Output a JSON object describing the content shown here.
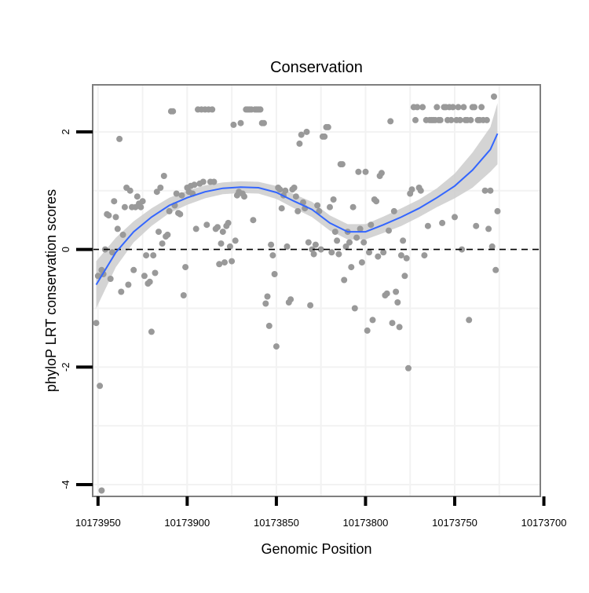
{
  "chart_data": {
    "type": "scatter",
    "title": "Conservation",
    "xlabel": "Genomic Position",
    "ylabel": "phyloP LRT conservation scores",
    "x_reversed": true,
    "xlim": [
      10173953,
      10173702
    ],
    "ylim": [
      -4.2,
      2.8
    ],
    "x_ticks": [
      10173950,
      10173900,
      10173850,
      10173800,
      10173750,
      10173700
    ],
    "x_tick_labels": [
      "10173950",
      "10173900",
      "10173850",
      "10173800",
      "10173750",
      "10173700"
    ],
    "y_ticks": [
      -4,
      -2,
      0,
      2
    ],
    "y_tick_labels": [
      "-4",
      "-2",
      "0",
      "2"
    ],
    "grid": true,
    "reference_line": {
      "y": 0,
      "style": "dashed",
      "color": "#000000"
    },
    "colors": {
      "points": "#999999",
      "smooth_line": "#3366ff",
      "confidence_band": "#cccccc",
      "panel_border": "#7f7f7f",
      "grid": "#f2f2f2"
    },
    "series": [
      {
        "name": "scores",
        "kind": "points",
        "points": [
          [
            10173951,
            -1.25
          ],
          [
            10173950,
            -0.45
          ],
          [
            10173949,
            -2.32
          ],
          [
            10173948,
            -4.1
          ],
          [
            10173948,
            -0.35
          ],
          [
            10173947,
            -0.42
          ],
          [
            10173946,
            0.0
          ],
          [
            10173945,
            0.6
          ],
          [
            10173944,
            0.58
          ],
          [
            10173943,
            -0.5
          ],
          [
            10173942,
            -0.05
          ],
          [
            10173941,
            0.82
          ],
          [
            10173940,
            0.55
          ],
          [
            10173939,
            0.35
          ],
          [
            10173938,
            1.88
          ],
          [
            10173937,
            -0.72
          ],
          [
            10173936,
            0.25
          ],
          [
            10173935,
            0.72
          ],
          [
            10173934,
            1.05
          ],
          [
            10173933,
            -0.6
          ],
          [
            10173932,
            1.0
          ],
          [
            10173931,
            0.72
          ],
          [
            10173930,
            -0.35
          ],
          [
            10173929,
            0.72
          ],
          [
            10173928,
            0.9
          ],
          [
            10173927,
            0.78
          ],
          [
            10173926,
            0.72
          ],
          [
            10173925,
            0.82
          ],
          [
            10173924,
            -0.45
          ],
          [
            10173923,
            -0.1
          ],
          [
            10173922,
            -0.58
          ],
          [
            10173921,
            -0.55
          ],
          [
            10173920,
            -1.4
          ],
          [
            10173919,
            -0.1
          ],
          [
            10173918,
            -0.4
          ],
          [
            10173917,
            0.98
          ],
          [
            10173916,
            0.3
          ],
          [
            10173915,
            1.05
          ],
          [
            10173914,
            0.1
          ],
          [
            10173913,
            1.25
          ],
          [
            10173912,
            0.22
          ],
          [
            10173911,
            0.25
          ],
          [
            10173910,
            0.65
          ],
          [
            10173909,
            2.35
          ],
          [
            10173908,
            2.35
          ],
          [
            10173907,
            0.75
          ],
          [
            10173906,
            0.95
          ],
          [
            10173905,
            0.62
          ],
          [
            10173904,
            0.6
          ],
          [
            10173903,
            0.92
          ],
          [
            10173902,
            -0.78
          ],
          [
            10173901,
            -0.3
          ],
          [
            10173900,
            1.05
          ],
          [
            10173899,
            0.98
          ],
          [
            10173898,
            1.08
          ],
          [
            10173897,
            0.95
          ],
          [
            10173896,
            1.1
          ],
          [
            10173895,
            0.35
          ],
          [
            10173894,
            2.38
          ],
          [
            10173893,
            1.12
          ],
          [
            10173892,
            2.38
          ],
          [
            10173891,
            1.15
          ],
          [
            10173890,
            2.38
          ],
          [
            10173889,
            0.42
          ],
          [
            10173888,
            2.38
          ],
          [
            10173887,
            1.15
          ],
          [
            10173886,
            2.38
          ],
          [
            10173885,
            1.15
          ],
          [
            10173884,
            0.35
          ],
          [
            10173883,
            0.38
          ],
          [
            10173882,
            -0.25
          ],
          [
            10173881,
            0.1
          ],
          [
            10173880,
            0.3
          ],
          [
            10173879,
            -0.22
          ],
          [
            10173878,
            0.4
          ],
          [
            10173877,
            0.45
          ],
          [
            10173876,
            0.05
          ],
          [
            10173875,
            -0.2
          ],
          [
            10173874,
            2.12
          ],
          [
            10173873,
            0.15
          ],
          [
            10173872,
            0.92
          ],
          [
            10173871,
            0.98
          ],
          [
            10173870,
            2.15
          ],
          [
            10173869,
            0.95
          ],
          [
            10173868,
            0.9
          ],
          [
            10173867,
            2.38
          ],
          [
            10173866,
            2.38
          ],
          [
            10173865,
            2.38
          ],
          [
            10173864,
            2.38
          ],
          [
            10173863,
            0.5
          ],
          [
            10173862,
            2.38
          ],
          [
            10173861,
            2.38
          ],
          [
            10173860,
            2.38
          ],
          [
            10173859,
            2.38
          ],
          [
            10173858,
            2.15
          ],
          [
            10173857,
            2.15
          ],
          [
            10173856,
            -0.92
          ],
          [
            10173855,
            -0.8
          ],
          [
            10173854,
            -1.3
          ],
          [
            10173853,
            0.08
          ],
          [
            10173852,
            -0.1
          ],
          [
            10173851,
            -0.42
          ],
          [
            10173850,
            -1.65
          ],
          [
            10173849,
            1.05
          ],
          [
            10173848,
            1.02
          ],
          [
            10173847,
            0.7
          ],
          [
            10173846,
            0.92
          ],
          [
            10173845,
            1.0
          ],
          [
            10173844,
            0.05
          ],
          [
            10173843,
            -0.9
          ],
          [
            10173842,
            -0.85
          ],
          [
            10173841,
            1.02
          ],
          [
            10173840,
            1.05
          ],
          [
            10173839,
            0.9
          ],
          [
            10173838,
            0.65
          ],
          [
            10173837,
            1.8
          ],
          [
            10173836,
            1.95
          ],
          [
            10173835,
            0.8
          ],
          [
            10173834,
            0.7
          ],
          [
            10173833,
            2.0
          ],
          [
            10173832,
            0.12
          ],
          [
            10173831,
            -0.95
          ],
          [
            10173830,
            0.0
          ],
          [
            10173829,
            -0.08
          ],
          [
            10173828,
            0.08
          ],
          [
            10173827,
            0.75
          ],
          [
            10173826,
            0.65
          ],
          [
            10173825,
            0.0
          ],
          [
            10173824,
            1.92
          ],
          [
            10173823,
            1.92
          ],
          [
            10173822,
            2.08
          ],
          [
            10173821,
            2.08
          ],
          [
            10173820,
            0.72
          ],
          [
            10173819,
            -0.05
          ],
          [
            10173818,
            0.85
          ],
          [
            10173817,
            0.3
          ],
          [
            10173816,
            0.15
          ],
          [
            10173815,
            -0.08
          ],
          [
            10173814,
            1.45
          ],
          [
            10173813,
            1.45
          ],
          [
            10173812,
            -0.52
          ],
          [
            10173811,
            0.05
          ],
          [
            10173810,
            0.3
          ],
          [
            10173809,
            0.12
          ],
          [
            10173808,
            -0.3
          ],
          [
            10173807,
            0.72
          ],
          [
            10173806,
            -1.0
          ],
          [
            10173805,
            0.2
          ],
          [
            10173804,
            1.32
          ],
          [
            10173803,
            0.35
          ],
          [
            10173802,
            -0.22
          ],
          [
            10173801,
            0.12
          ],
          [
            10173800,
            1.32
          ],
          [
            10173799,
            -1.38
          ],
          [
            10173798,
            -0.05
          ],
          [
            10173797,
            0.42
          ],
          [
            10173796,
            -1.2
          ],
          [
            10173795,
            0.85
          ],
          [
            10173794,
            0.82
          ],
          [
            10173793,
            -0.12
          ],
          [
            10173792,
            1.25
          ],
          [
            10173791,
            1.3
          ],
          [
            10173790,
            -0.05
          ],
          [
            10173789,
            -0.78
          ],
          [
            10173788,
            -0.75
          ],
          [
            10173787,
            0.32
          ],
          [
            10173786,
            2.18
          ],
          [
            10173785,
            -1.25
          ],
          [
            10173784,
            0.65
          ],
          [
            10173783,
            -0.72
          ],
          [
            10173782,
            -0.9
          ],
          [
            10173781,
            -1.32
          ],
          [
            10173780,
            -0.1
          ],
          [
            10173779,
            0.15
          ],
          [
            10173778,
            -0.45
          ],
          [
            10173777,
            -0.15
          ],
          [
            10173776,
            -2.02
          ],
          [
            10173775,
            0.95
          ],
          [
            10173774,
            1.02
          ],
          [
            10173773,
            2.42
          ],
          [
            10173772,
            2.2
          ],
          [
            10173771,
            2.42
          ],
          [
            10173770,
            1.05
          ],
          [
            10173769,
            1.0
          ],
          [
            10173768,
            2.42
          ],
          [
            10173767,
            -0.1
          ],
          [
            10173766,
            2.2
          ],
          [
            10173765,
            0.4
          ],
          [
            10173764,
            2.2
          ],
          [
            10173763,
            2.2
          ],
          [
            10173762,
            2.2
          ],
          [
            10173761,
            2.2
          ],
          [
            10173760,
            2.42
          ],
          [
            10173759,
            2.2
          ],
          [
            10173758,
            2.2
          ],
          [
            10173757,
            0.45
          ],
          [
            10173756,
            2.42
          ],
          [
            10173755,
            2.42
          ],
          [
            10173754,
            2.2
          ],
          [
            10173753,
            2.42
          ],
          [
            10173752,
            2.2
          ],
          [
            10173751,
            2.42
          ],
          [
            10173750,
            0.55
          ],
          [
            10173749,
            2.2
          ],
          [
            10173748,
            2.42
          ],
          [
            10173747,
            2.2
          ],
          [
            10173746,
            0.0
          ],
          [
            10173745,
            2.42
          ],
          [
            10173744,
            2.2
          ],
          [
            10173743,
            2.2
          ],
          [
            10173742,
            -1.2
          ],
          [
            10173741,
            2.2
          ],
          [
            10173740,
            2.42
          ],
          [
            10173739,
            2.42
          ],
          [
            10173738,
            0.4
          ],
          [
            10173737,
            2.2
          ],
          [
            10173736,
            2.2
          ],
          [
            10173735,
            2.42
          ],
          [
            10173734,
            2.2
          ],
          [
            10173733,
            1.0
          ],
          [
            10173732,
            2.2
          ],
          [
            10173731,
            0.35
          ],
          [
            10173730,
            1.0
          ],
          [
            10173729,
            0.05
          ],
          [
            10173728,
            2.6
          ],
          [
            10173727,
            -0.35
          ],
          [
            10173726,
            0.65
          ]
        ]
      },
      {
        "name": "smooth",
        "kind": "line",
        "x": [
          10173951,
          10173940,
          10173930,
          10173920,
          10173910,
          10173900,
          10173890,
          10173880,
          10173870,
          10173860,
          10173850,
          10173840,
          10173830,
          10173820,
          10173810,
          10173800,
          10173790,
          10173780,
          10173770,
          10173760,
          10173750,
          10173740,
          10173730,
          10173726
        ],
        "y": [
          -0.6,
          -0.05,
          0.3,
          0.55,
          0.75,
          0.88,
          0.98,
          1.04,
          1.06,
          1.05,
          0.97,
          0.82,
          0.68,
          0.45,
          0.3,
          0.3,
          0.42,
          0.55,
          0.7,
          0.88,
          1.08,
          1.35,
          1.7,
          1.97
        ],
        "band_lower": [
          -1.0,
          -0.3,
          0.12,
          0.4,
          0.62,
          0.76,
          0.87,
          0.94,
          0.96,
          0.95,
          0.86,
          0.7,
          0.55,
          0.32,
          0.17,
          0.17,
          0.28,
          0.4,
          0.55,
          0.72,
          0.87,
          1.05,
          1.32,
          1.45
        ],
        "band_upper": [
          -0.2,
          0.2,
          0.48,
          0.7,
          0.88,
          1.0,
          1.09,
          1.14,
          1.16,
          1.15,
          1.08,
          0.94,
          0.81,
          0.58,
          0.43,
          0.43,
          0.56,
          0.7,
          0.85,
          1.04,
          1.29,
          1.65,
          2.08,
          2.49
        ]
      }
    ]
  }
}
